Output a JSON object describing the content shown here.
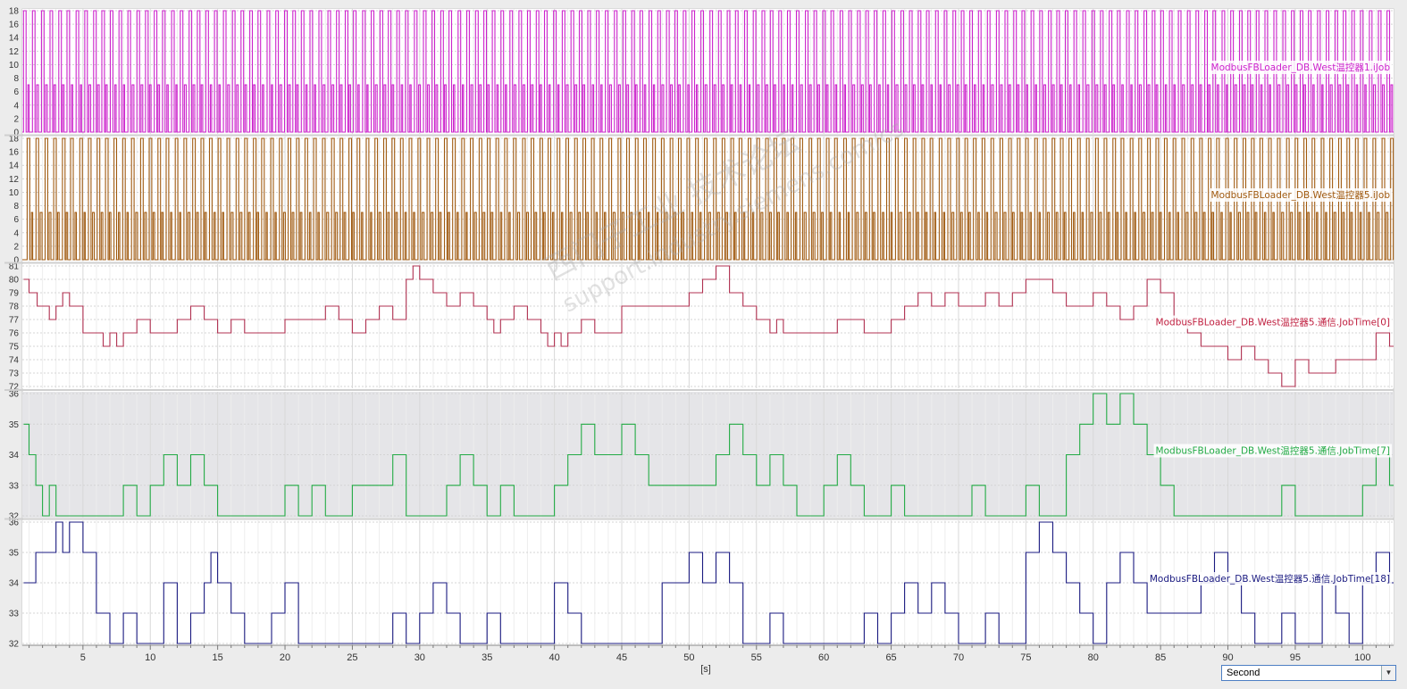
{
  "chart_data": {
    "type": "line",
    "x_unit_label": "[s]",
    "x_ticks": [
      5,
      10,
      15,
      20,
      25,
      30,
      35,
      40,
      45,
      50,
      55,
      60,
      65,
      70,
      75,
      80,
      85,
      90,
      95,
      100
    ],
    "xlim": [
      0.5,
      102.3
    ],
    "panels": [
      {
        "name": "ModbusFBLoader_DB.West温控器1.iJob",
        "color": "#cc22cc",
        "label_color": "#cc22cc",
        "background": "#ffffff",
        "ylim": [
          0,
          18
        ],
        "y_ticks": [
          0,
          2,
          4,
          6,
          8,
          10,
          12,
          14,
          16,
          18
        ],
        "waveform": "job_cycle",
        "offset": 0.0,
        "period": 0.55
      },
      {
        "name": "ModbusFBLoader_DB.West温控器5.iJob",
        "color": "#a05a10",
        "label_color": "#a05a10",
        "background": "#ffffff",
        "ylim": [
          0,
          18
        ],
        "y_ticks": [
          0,
          2,
          4,
          6,
          8,
          10,
          12,
          14,
          16,
          18
        ],
        "waveform": "job_cycle",
        "offset": 0.27,
        "period": 0.55
      },
      {
        "name": "ModbusFBLoader_DB.West温控器5.通信.JobTime[0]",
        "color": "#b03050",
        "label_color": "#c02040",
        "background": "#ffffff",
        "ylim": [
          72,
          81
        ],
        "y_ticks": [
          72,
          73,
          74,
          75,
          76,
          77,
          78,
          79,
          80,
          81
        ],
        "steps": [
          [
            0.6,
            80
          ],
          [
            1,
            79
          ],
          [
            1.6,
            78
          ],
          [
            2.5,
            77
          ],
          [
            3,
            78
          ],
          [
            3.5,
            79
          ],
          [
            4,
            78
          ],
          [
            5,
            77
          ],
          [
            5,
            76
          ],
          [
            6.5,
            75
          ],
          [
            7,
            76
          ],
          [
            7.5,
            75
          ],
          [
            8,
            76
          ],
          [
            9,
            77
          ],
          [
            10,
            76
          ],
          [
            12,
            77
          ],
          [
            13,
            78
          ],
          [
            14,
            77
          ],
          [
            15,
            76
          ],
          [
            16,
            77
          ],
          [
            17,
            76
          ],
          [
            20,
            77
          ],
          [
            23,
            78
          ],
          [
            24,
            77
          ],
          [
            25,
            76
          ],
          [
            26,
            77
          ],
          [
            27,
            78
          ],
          [
            28,
            77
          ],
          [
            29,
            80
          ],
          [
            29.5,
            81
          ],
          [
            30,
            80
          ],
          [
            31,
            79
          ],
          [
            32,
            78
          ],
          [
            33,
            79
          ],
          [
            34,
            78
          ],
          [
            35,
            77
          ],
          [
            35.5,
            76
          ],
          [
            36,
            77
          ],
          [
            37,
            78
          ],
          [
            38,
            77
          ],
          [
            39,
            76
          ],
          [
            39.5,
            75
          ],
          [
            40,
            76
          ],
          [
            40.5,
            75
          ],
          [
            41,
            76
          ],
          [
            42,
            77
          ],
          [
            43,
            76
          ],
          [
            45,
            78
          ],
          [
            47,
            78
          ],
          [
            50,
            79
          ],
          [
            51,
            80
          ],
          [
            52,
            81
          ],
          [
            53,
            79
          ],
          [
            54,
            78
          ],
          [
            55,
            77
          ],
          [
            56,
            76
          ],
          [
            56.5,
            77
          ],
          [
            57,
            76
          ],
          [
            59,
            76
          ],
          [
            61,
            77
          ],
          [
            63,
            76
          ],
          [
            65,
            77
          ],
          [
            66,
            78
          ],
          [
            67,
            79
          ],
          [
            68,
            78
          ],
          [
            69,
            79
          ],
          [
            70,
            78
          ],
          [
            71,
            78
          ],
          [
            72,
            79
          ],
          [
            73,
            78
          ],
          [
            74,
            79
          ],
          [
            75,
            80
          ],
          [
            77,
            79
          ],
          [
            78,
            78
          ],
          [
            80,
            79
          ],
          [
            81,
            78
          ],
          [
            82,
            77
          ],
          [
            83,
            78
          ],
          [
            84,
            80
          ],
          [
            85,
            79
          ],
          [
            86,
            77
          ],
          [
            87,
            76
          ],
          [
            88,
            75
          ],
          [
            89,
            75
          ],
          [
            90,
            74
          ],
          [
            91,
            75
          ],
          [
            92,
            74
          ],
          [
            93,
            73
          ],
          [
            94,
            72
          ],
          [
            95,
            74
          ],
          [
            96,
            73
          ],
          [
            97,
            73
          ],
          [
            98,
            74
          ],
          [
            99,
            74
          ],
          [
            100,
            74
          ],
          [
            101,
            76
          ],
          [
            102,
            75
          ]
        ]
      },
      {
        "name": "ModbusFBLoader_DB.West温控器5.通信.JobTime[7]",
        "color": "#22aa44",
        "label_color": "#22aa44",
        "background": "#e5e5e8",
        "ylim": [
          32,
          36
        ],
        "y_ticks": [
          32,
          33,
          34,
          35,
          36
        ],
        "steps": [
          [
            0.6,
            35
          ],
          [
            1,
            34
          ],
          [
            1.5,
            33
          ],
          [
            2,
            32
          ],
          [
            2.5,
            33
          ],
          [
            3,
            32
          ],
          [
            8,
            33
          ],
          [
            9,
            32
          ],
          [
            10,
            33
          ],
          [
            11,
            34
          ],
          [
            12,
            33
          ],
          [
            13,
            34
          ],
          [
            14,
            33
          ],
          [
            15,
            32
          ],
          [
            20,
            33
          ],
          [
            21,
            32
          ],
          [
            22,
            33
          ],
          [
            23,
            32
          ],
          [
            25,
            33
          ],
          [
            28,
            34
          ],
          [
            29,
            32
          ],
          [
            30,
            32
          ],
          [
            32,
            33
          ],
          [
            33,
            34
          ],
          [
            34,
            33
          ],
          [
            35,
            32
          ],
          [
            36,
            33
          ],
          [
            37,
            32
          ],
          [
            40,
            33
          ],
          [
            41,
            34
          ],
          [
            42,
            35
          ],
          [
            43,
            34
          ],
          [
            45,
            35
          ],
          [
            46,
            34
          ],
          [
            47,
            33
          ],
          [
            50,
            33
          ],
          [
            52,
            34
          ],
          [
            53,
            35
          ],
          [
            54,
            34
          ],
          [
            55,
            33
          ],
          [
            56,
            34
          ],
          [
            57,
            33
          ],
          [
            58,
            32
          ],
          [
            60,
            33
          ],
          [
            61,
            34
          ],
          [
            62,
            33
          ],
          [
            63,
            32
          ],
          [
            65,
            33
          ],
          [
            66,
            32
          ],
          [
            68,
            32
          ],
          [
            71,
            33
          ],
          [
            72,
            32
          ],
          [
            75,
            33
          ],
          [
            76,
            32
          ],
          [
            78,
            34
          ],
          [
            79,
            35
          ],
          [
            80,
            36
          ],
          [
            81,
            35
          ],
          [
            82,
            36
          ],
          [
            83,
            35
          ],
          [
            84,
            34
          ],
          [
            85,
            33
          ],
          [
            86,
            32
          ],
          [
            88,
            32
          ],
          [
            90,
            32
          ],
          [
            92,
            32
          ],
          [
            94,
            33
          ],
          [
            95,
            32
          ],
          [
            97,
            32
          ],
          [
            99,
            32
          ],
          [
            100,
            33
          ],
          [
            101,
            34
          ],
          [
            102,
            33
          ]
        ]
      },
      {
        "name": "ModbusFBLoader_DB.West温控器5.通信.JobTime[18]",
        "color": "#1a1a80",
        "label_color": "#1a1a80",
        "background": "#ffffff",
        "ylim": [
          32,
          36
        ],
        "y_ticks": [
          32,
          33,
          34,
          35,
          36
        ],
        "steps": [
          [
            0.6,
            34
          ],
          [
            1.5,
            35
          ],
          [
            2.5,
            35
          ],
          [
            3,
            36
          ],
          [
            3.5,
            35
          ],
          [
            4,
            36
          ],
          [
            5,
            35
          ],
          [
            6,
            33
          ],
          [
            7,
            32
          ],
          [
            8,
            33
          ],
          [
            9,
            32
          ],
          [
            10,
            32
          ],
          [
            11,
            34
          ],
          [
            12,
            32
          ],
          [
            13,
            33
          ],
          [
            14,
            34
          ],
          [
            14.5,
            35
          ],
          [
            15,
            34
          ],
          [
            16,
            33
          ],
          [
            17,
            32
          ],
          [
            19,
            33
          ],
          [
            20,
            34
          ],
          [
            21,
            32
          ],
          [
            25,
            32
          ],
          [
            28,
            33
          ],
          [
            29,
            32
          ],
          [
            30,
            33
          ],
          [
            31,
            34
          ],
          [
            32,
            33
          ],
          [
            33,
            32
          ],
          [
            35,
            33
          ],
          [
            36,
            32
          ],
          [
            38,
            32
          ],
          [
            40,
            34
          ],
          [
            41,
            33
          ],
          [
            42,
            32
          ],
          [
            46,
            32
          ],
          [
            48,
            34
          ],
          [
            50,
            35
          ],
          [
            51,
            34
          ],
          [
            52,
            35
          ],
          [
            53,
            34
          ],
          [
            54,
            32
          ],
          [
            56,
            33
          ],
          [
            57,
            32
          ],
          [
            59,
            32
          ],
          [
            61,
            32
          ],
          [
            63,
            33
          ],
          [
            64,
            32
          ],
          [
            65,
            33
          ],
          [
            66,
            34
          ],
          [
            67,
            33
          ],
          [
            68,
            34
          ],
          [
            69,
            33
          ],
          [
            70,
            32
          ],
          [
            72,
            33
          ],
          [
            73,
            32
          ],
          [
            75,
            35
          ],
          [
            76,
            36
          ],
          [
            77,
            35
          ],
          [
            78,
            34
          ],
          [
            79,
            33
          ],
          [
            80,
            32
          ],
          [
            81,
            34
          ],
          [
            82,
            35
          ],
          [
            83,
            34
          ],
          [
            84,
            33
          ],
          [
            86,
            33
          ],
          [
            88,
            34
          ],
          [
            89,
            35
          ],
          [
            90,
            34
          ],
          [
            91,
            33
          ],
          [
            92,
            32
          ],
          [
            94,
            33
          ],
          [
            95,
            32
          ],
          [
            97,
            34
          ],
          [
            98,
            33
          ],
          [
            99,
            32
          ],
          [
            100,
            34
          ],
          [
            101,
            35
          ],
          [
            102,
            34
          ]
        ]
      }
    ]
  },
  "controls": {
    "timebase": "Second"
  },
  "watermark": {
    "line1": "西门子工业  技术论坛",
    "line2": "support.industry.siemens.com/cs"
  },
  "colors": {
    "grid": "#d4d4d4",
    "axis": "#888888",
    "frame_bg": "#ececec"
  }
}
